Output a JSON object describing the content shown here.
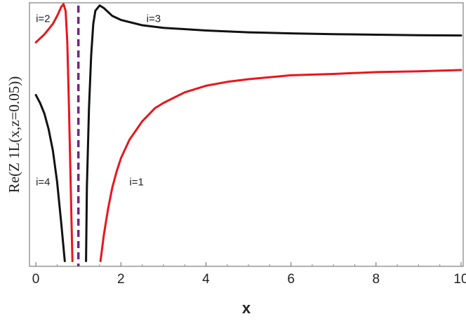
{
  "chart_data": {
    "type": "line",
    "title": "",
    "xlabel": "x",
    "ylabel": "Re(Z 1L(x,z=0.05))",
    "xlim": [
      -0.15,
      10.05
    ],
    "ylim": [
      0.0,
      1.0
    ],
    "x_ticks": [
      0,
      2,
      4,
      6,
      8,
      10
    ],
    "x_tick_labels": [
      "0",
      "2",
      "4",
      "6",
      "8",
      "10"
    ],
    "y_ticks": [],
    "grid": false,
    "vertical_marker": {
      "x": 1.0,
      "style": "dashed",
      "color": "#7b1f8c"
    },
    "colors": {
      "red": "#e8161b",
      "black": "#111111",
      "purple": "#7b1f8c"
    },
    "series": [
      {
        "name": "i=1",
        "color": "#e8161b",
        "x": [
          1.52,
          1.6,
          1.7,
          1.8,
          1.9,
          2.0,
          2.2,
          2.5,
          2.8,
          3.0,
          3.5,
          4.0,
          4.5,
          5.0,
          6.0,
          7.0,
          8.0,
          9.0,
          10.0
        ],
        "y": [
          0.02,
          0.12,
          0.22,
          0.3,
          0.36,
          0.41,
          0.48,
          0.55,
          0.6,
          0.62,
          0.66,
          0.685,
          0.7,
          0.71,
          0.725,
          0.73,
          0.737,
          0.74,
          0.745
        ]
      },
      {
        "name": "i=2",
        "color": "#e8161b",
        "x": [
          0.0,
          0.1,
          0.2,
          0.3,
          0.4,
          0.5,
          0.6,
          0.65,
          0.7,
          0.74,
          0.78,
          0.82,
          0.86
        ],
        "y": [
          0.85,
          0.865,
          0.88,
          0.9,
          0.92,
          0.95,
          0.985,
          0.995,
          0.97,
          0.85,
          0.6,
          0.3,
          0.02
        ]
      },
      {
        "name": "i=3",
        "color": "#111111",
        "x": [
          1.18,
          1.2,
          1.25,
          1.3,
          1.35,
          1.4,
          1.5,
          1.6,
          1.8,
          2.0,
          2.5,
          3.0,
          4.0,
          5.0,
          6.0,
          7.0,
          8.0,
          9.0,
          10.0
        ],
        "y": [
          0.02,
          0.3,
          0.6,
          0.8,
          0.92,
          0.97,
          0.99,
          0.98,
          0.95,
          0.935,
          0.915,
          0.905,
          0.895,
          0.888,
          0.884,
          0.881,
          0.879,
          0.877,
          0.876
        ]
      },
      {
        "name": "i=4",
        "color": "#111111",
        "x": [
          0.0,
          0.1,
          0.2,
          0.3,
          0.4,
          0.5,
          0.6,
          0.68
        ],
        "y": [
          0.65,
          0.62,
          0.58,
          0.52,
          0.44,
          0.32,
          0.16,
          0.02
        ]
      }
    ],
    "annotations": [
      {
        "text": "i=2",
        "x": 0.0,
        "y": 0.94
      },
      {
        "text": "i=3",
        "x": 2.6,
        "y": 0.94
      },
      {
        "text": "i=4",
        "x": 0.0,
        "y": 0.32
      },
      {
        "text": "i=1",
        "x": 2.2,
        "y": 0.32
      }
    ]
  }
}
